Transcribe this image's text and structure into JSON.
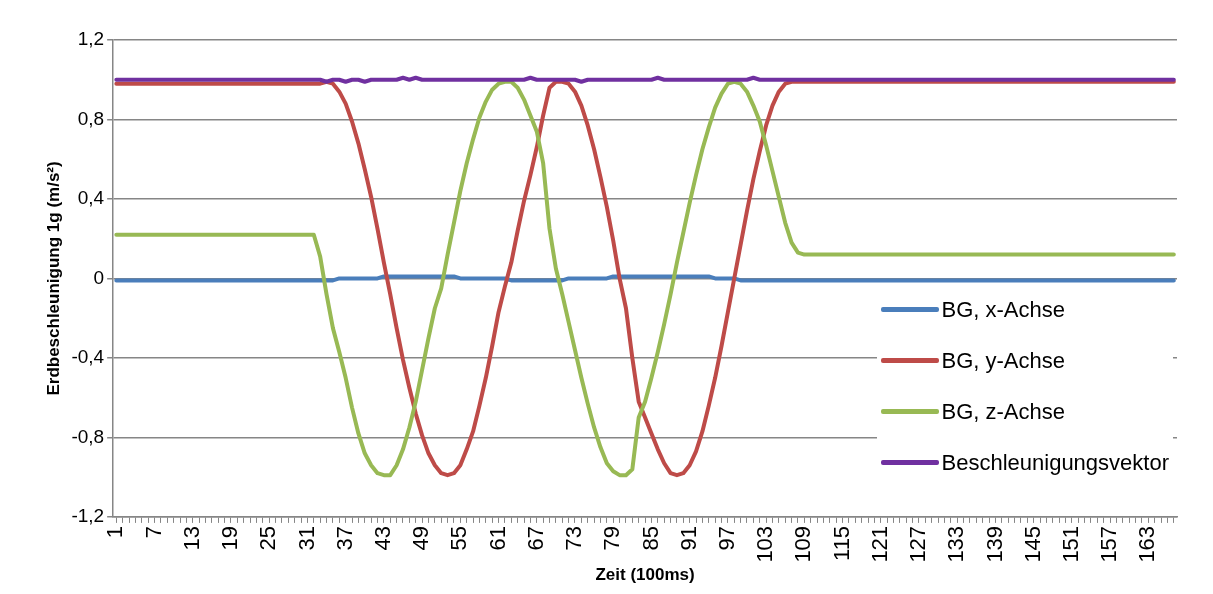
{
  "chart_data": {
    "type": "line",
    "xlabel": "Zeit (100ms)",
    "ylabel": "Erdbeschleunigung 1g (m/s²)",
    "categories": [
      "1",
      null,
      null,
      null,
      null,
      null,
      "7",
      null,
      null,
      null,
      null,
      null,
      "13",
      null,
      null,
      null,
      null,
      null,
      "19",
      null,
      null,
      null,
      null,
      null,
      "25",
      null,
      null,
      null,
      null,
      null,
      "31",
      null,
      null,
      null,
      null,
      null,
      "37",
      null,
      null,
      null,
      null,
      null,
      "43",
      null,
      null,
      null,
      null,
      null,
      "49",
      null,
      null,
      null,
      null,
      null,
      "55",
      null,
      null,
      null,
      null,
      null,
      "61",
      null,
      null,
      null,
      null,
      null,
      "67",
      null,
      null,
      null,
      null,
      null,
      "73",
      null,
      null,
      null,
      null,
      null,
      "79",
      null,
      null,
      null,
      null,
      null,
      "85",
      null,
      null,
      null,
      null,
      null,
      "91",
      null,
      null,
      null,
      null,
      null,
      "97",
      null,
      null,
      null,
      null,
      null,
      "103",
      null,
      null,
      null,
      null,
      null,
      "109",
      null,
      null,
      null,
      null,
      null,
      "115",
      null,
      null,
      null,
      null,
      null,
      "121",
      null,
      null,
      null,
      null,
      null,
      "127",
      null,
      null,
      null,
      null,
      null,
      "133",
      null,
      null,
      null,
      null,
      null,
      "139",
      null,
      null,
      null,
      null,
      null,
      "145",
      null,
      null,
      null,
      null,
      null,
      "151",
      null,
      null,
      null,
      null,
      null,
      "157",
      null,
      null,
      null,
      null,
      null,
      "163",
      null,
      null,
      null,
      null
    ],
    "series": [
      {
        "name": "BG, x-Achse",
        "color": "#4a7ebb",
        "values": [
          -0.01,
          -0.01,
          -0.01,
          -0.01,
          -0.01,
          -0.01,
          -0.01,
          -0.01,
          -0.01,
          -0.01,
          -0.01,
          -0.01,
          -0.01,
          -0.01,
          -0.01,
          -0.01,
          -0.01,
          -0.01,
          -0.01,
          -0.01,
          -0.01,
          -0.01,
          -0.01,
          -0.01,
          -0.01,
          -0.01,
          -0.01,
          -0.01,
          -0.01,
          -0.01,
          -0.01,
          -0.01,
          -0.01,
          -0.01,
          -0.01,
          0,
          0,
          0,
          0,
          0,
          0,
          0,
          0.01,
          0.01,
          0.01,
          0.01,
          0.01,
          0.01,
          0.01,
          0.01,
          0.01,
          0.01,
          0.01,
          0.01,
          0,
          0,
          0,
          0,
          0,
          0,
          0,
          0,
          -0.01,
          -0.01,
          -0.01,
          -0.01,
          -0.01,
          -0.01,
          -0.01,
          -0.01,
          -0.01,
          0,
          0,
          0,
          0,
          0,
          0,
          0,
          0.01,
          0.01,
          0.01,
          0.01,
          0.01,
          0.01,
          0.01,
          0.01,
          0.01,
          0.01,
          0.01,
          0.01,
          0.01,
          0.01,
          0.01,
          0.01,
          0,
          0,
          0,
          0,
          -0.01,
          -0.01,
          -0.01,
          -0.01,
          -0.01,
          -0.01,
          -0.01,
          -0.01,
          -0.01,
          -0.01,
          -0.01,
          -0.01,
          -0.01,
          -0.01,
          -0.01,
          -0.01,
          -0.01,
          -0.01,
          -0.01,
          -0.01,
          -0.01,
          -0.01,
          -0.01,
          -0.01,
          -0.01,
          -0.01,
          -0.01,
          -0.01,
          -0.01,
          -0.01,
          -0.01,
          -0.01,
          -0.01,
          -0.01,
          -0.01,
          -0.01,
          -0.01,
          -0.01,
          -0.01,
          -0.01,
          -0.01,
          -0.01,
          -0.01,
          -0.01,
          -0.01,
          -0.01,
          -0.01,
          -0.01,
          -0.01,
          -0.01,
          -0.01,
          -0.01,
          -0.01,
          -0.01,
          -0.01,
          -0.01,
          -0.01,
          -0.01,
          -0.01,
          -0.01,
          -0.01,
          -0.01,
          -0.01,
          -0.01,
          -0.01,
          -0.01,
          -0.01,
          -0.01,
          -0.01
        ]
      },
      {
        "name": "BG, y-Achse",
        "color": "#be4b48",
        "values": [
          0.98,
          0.98,
          0.98,
          0.98,
          0.98,
          0.98,
          0.98,
          0.98,
          0.98,
          0.98,
          0.98,
          0.98,
          0.98,
          0.98,
          0.98,
          0.98,
          0.98,
          0.98,
          0.98,
          0.98,
          0.98,
          0.98,
          0.98,
          0.98,
          0.98,
          0.98,
          0.98,
          0.98,
          0.98,
          0.98,
          0.98,
          0.98,
          0.98,
          0.99,
          0.98,
          0.94,
          0.88,
          0.79,
          0.68,
          0.55,
          0.41,
          0.25,
          0.08,
          -0.08,
          -0.25,
          -0.41,
          -0.55,
          -0.68,
          -0.79,
          -0.88,
          -0.94,
          -0.98,
          -0.99,
          -0.98,
          -0.94,
          -0.86,
          -0.77,
          -0.64,
          -0.5,
          -0.34,
          -0.17,
          -0.04,
          0.08,
          0.24,
          0.39,
          0.52,
          0.66,
          0.82,
          0.96,
          0.99,
          0.99,
          0.98,
          0.94,
          0.87,
          0.77,
          0.65,
          0.51,
          0.36,
          0.19,
          0,
          -0.15,
          -0.4,
          -0.62,
          -0.7,
          -0.78,
          -0.86,
          -0.93,
          -0.98,
          -0.99,
          -0.98,
          -0.94,
          -0.87,
          -0.77,
          -0.64,
          -0.5,
          -0.34,
          -0.17,
          0,
          0.17,
          0.34,
          0.5,
          0.64,
          0.77,
          0.87,
          0.94,
          0.98,
          0.99,
          0.99,
          0.99,
          0.99,
          0.99,
          0.99,
          0.99,
          0.99,
          0.99,
          0.99,
          0.99,
          0.99,
          0.99,
          0.99,
          0.99,
          0.99,
          0.99,
          0.99,
          0.99,
          0.99,
          0.99,
          0.99,
          0.99,
          0.99,
          0.99,
          0.99,
          0.99,
          0.99,
          0.99,
          0.99,
          0.99,
          0.99,
          0.99,
          0.99,
          0.99,
          0.99,
          0.99,
          0.99,
          0.99,
          0.99,
          0.99,
          0.99,
          0.99,
          0.99,
          0.99,
          0.99,
          0.99,
          0.99,
          0.99,
          0.99,
          0.99,
          0.99,
          0.99,
          0.99,
          0.99,
          0.99,
          0.99,
          0.99,
          0.99,
          0.99,
          0.99
        ]
      },
      {
        "name": "BG, z-Achse",
        "color": "#98b954",
        "values": [
          0.22,
          0.22,
          0.22,
          0.22,
          0.22,
          0.22,
          0.22,
          0.22,
          0.22,
          0.22,
          0.22,
          0.22,
          0.22,
          0.22,
          0.22,
          0.22,
          0.22,
          0.22,
          0.22,
          0.22,
          0.22,
          0.22,
          0.22,
          0.22,
          0.22,
          0.22,
          0.22,
          0.22,
          0.22,
          0.22,
          0.22,
          0.22,
          0.11,
          -0.08,
          -0.25,
          -0.37,
          -0.5,
          -0.65,
          -0.78,
          -0.88,
          -0.94,
          -0.98,
          -0.99,
          -0.99,
          -0.94,
          -0.86,
          -0.75,
          -0.62,
          -0.46,
          -0.3,
          -0.15,
          -0.05,
          0.12,
          0.28,
          0.44,
          0.58,
          0.7,
          0.81,
          0.89,
          0.95,
          0.98,
          0.99,
          0.99,
          0.96,
          0.9,
          0.82,
          0.74,
          0.58,
          0.25,
          0.05,
          -0.08,
          -0.22,
          -0.36,
          -0.5,
          -0.63,
          -0.75,
          -0.85,
          -0.93,
          -0.97,
          -0.99,
          -0.99,
          -0.96,
          -0.7,
          -0.62,
          -0.5,
          -0.37,
          -0.23,
          -0.08,
          0.08,
          0.23,
          0.38,
          0.52,
          0.65,
          0.76,
          0.86,
          0.93,
          0.98,
          0.99,
          0.98,
          0.94,
          0.87,
          0.79,
          0.67,
          0.54,
          0.41,
          0.28,
          0.18,
          0.13,
          0.12,
          0.12,
          0.12,
          0.12,
          0.12,
          0.12,
          0.12,
          0.12,
          0.12,
          0.12,
          0.12,
          0.12,
          0.12,
          0.12,
          0.12,
          0.12,
          0.12,
          0.12,
          0.12,
          0.12,
          0.12,
          0.12,
          0.12,
          0.12,
          0.12,
          0.12,
          0.12,
          0.12,
          0.12,
          0.12,
          0.12,
          0.12,
          0.12,
          0.12,
          0.12,
          0.12,
          0.12,
          0.12,
          0.12,
          0.12,
          0.12,
          0.12,
          0.12,
          0.12,
          0.12,
          0.12,
          0.12,
          0.12,
          0.12,
          0.12,
          0.12,
          0.12,
          0.12,
          0.12,
          0.12,
          0.12,
          0.12,
          0.12,
          0.12
        ]
      },
      {
        "name": "Beschleunigungsvektor",
        "color": "#7030a0",
        "values": [
          1,
          1,
          1,
          1,
          1,
          1,
          1,
          1,
          1,
          1,
          1,
          1,
          1,
          1,
          1,
          1,
          1,
          1,
          1,
          1,
          1,
          1,
          1,
          1,
          1,
          1,
          1,
          1,
          1,
          1,
          1,
          1,
          1,
          0.99,
          1,
          1,
          0.99,
          1,
          1,
          0.99,
          1,
          1,
          1,
          1,
          1,
          1.01,
          1,
          1.01,
          1,
          1,
          1,
          1,
          1,
          1,
          1,
          1,
          1,
          1,
          1,
          1,
          1,
          1,
          1,
          1,
          1,
          1.01,
          1,
          1,
          1,
          1,
          1,
          1,
          1,
          0.99,
          1,
          1,
          1,
          1,
          1,
          1,
          1,
          1,
          1,
          1,
          1,
          1.01,
          1,
          1,
          1,
          1,
          1,
          1,
          1,
          1,
          1,
          1,
          1,
          1,
          1,
          1,
          1.01,
          1,
          1,
          1,
          1,
          1,
          1,
          1,
          1,
          1,
          1,
          1,
          1,
          1,
          1,
          1,
          1,
          1,
          1,
          1,
          1,
          1,
          1,
          1,
          1,
          1,
          1,
          1,
          1,
          1,
          1,
          1,
          1,
          1,
          1,
          1,
          1,
          1,
          1,
          1,
          1,
          1,
          1,
          1,
          1,
          1,
          1,
          1,
          1,
          1,
          1,
          1,
          1,
          1,
          1,
          1,
          1,
          1,
          1,
          1,
          1,
          1,
          1,
          1,
          1,
          1,
          1
        ]
      }
    ],
    "ylim": [
      -1.2,
      1.2
    ],
    "yticks": [
      {
        "value": -1.2,
        "label": "-1,2"
      },
      {
        "value": -0.8,
        "label": "-0,8"
      },
      {
        "value": -0.4,
        "label": "-0,4"
      },
      0,
      {
        "value": 0.4,
        "label": "0,4"
      },
      {
        "value": 0.8,
        "label": "0,8"
      },
      {
        "value": 1.2,
        "label": "1,2"
      }
    ],
    "grid": "y",
    "legend": "bottom right"
  }
}
